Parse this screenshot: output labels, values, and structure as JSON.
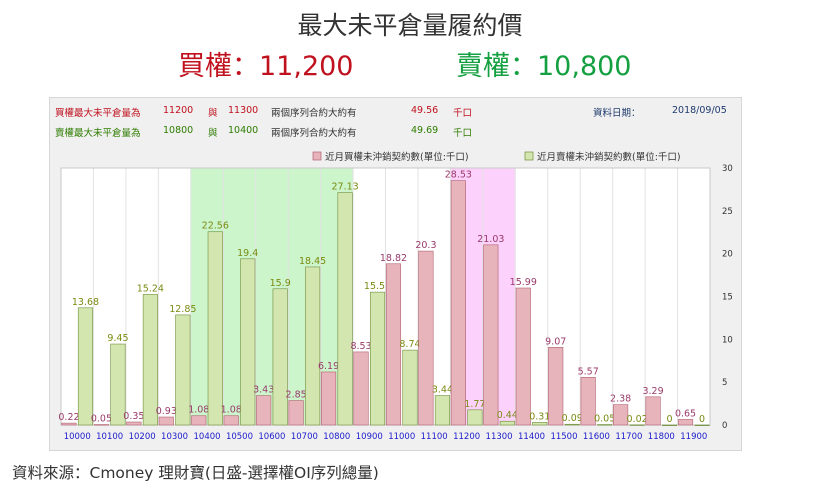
{
  "header": {
    "title": "最大未平倉量履約價",
    "call_text": "買權：11,200",
    "put_text": "賣權：10,800"
  },
  "info": {
    "row1": {
      "label": "買權最大未平倉量為",
      "strike_a": "11200",
      "conj": "與",
      "strike_b": "11300",
      "desc": "兩個序列合約大約有",
      "value": "49.56",
      "unit": "千口"
    },
    "row2": {
      "label": "賣權最大未平倉量為",
      "strike_a": "10800",
      "conj": "與",
      "strike_b": "10400",
      "desc": "兩個序列合約大約有",
      "value": "49.69",
      "unit": "千口"
    },
    "date_label": "資料日期：",
    "date_value": "2018/09/05"
  },
  "colors": {
    "call_bar": "#e8b4bb",
    "call_bar_stroke": "#b06070",
    "put_bar": "#d4e6b0",
    "put_bar_stroke": "#6e8e3a",
    "call_label": "#9a3a6a",
    "put_label": "#7a8a10",
    "put_highlight": "#ccf5cc",
    "call_highlight": "#fcd2fc",
    "x_tick": "#1a1acc"
  },
  "chart_data": {
    "type": "bar",
    "categories": [
      "10000",
      "10100",
      "10200",
      "10300",
      "10400",
      "10500",
      "10600",
      "10700",
      "10800",
      "10900",
      "11000",
      "11100",
      "11200",
      "11300",
      "11400",
      "11500",
      "11600",
      "11700",
      "11800",
      "11900"
    ],
    "series": [
      {
        "name": "近月賣權未沖銷契約數(單位:千口)",
        "values": [
          13.68,
          9.45,
          15.24,
          12.85,
          22.56,
          19.4,
          15.9,
          18.45,
          27.13,
          15.51,
          8.74,
          3.44,
          1.77,
          0.44,
          0.31,
          0.09,
          0.05,
          0.02,
          0,
          0
        ]
      },
      {
        "name": "近月買權未沖銷契約數(單位:千口)",
        "values": [
          0.22,
          0.05,
          0.35,
          0.93,
          1.08,
          1.08,
          3.43,
          2.85,
          6.19,
          8.53,
          18.82,
          20.3,
          28.53,
          21.03,
          15.99,
          9.07,
          5.57,
          2.38,
          3.29,
          0.65
        ]
      }
    ],
    "ylim": [
      0,
      30
    ],
    "y_ticks": [
      0,
      5,
      10,
      15,
      20,
      25,
      30
    ],
    "y_axis_side": "right",
    "legend_position": "top-right",
    "highlight_ranges": [
      {
        "from": "10400",
        "to": "10800",
        "series": "put"
      },
      {
        "from": "11200",
        "to": "11300",
        "series": "call"
      }
    ]
  },
  "source": "資料來源：Cmoney 理財寶(日盛-選擇權OI序列總量)"
}
